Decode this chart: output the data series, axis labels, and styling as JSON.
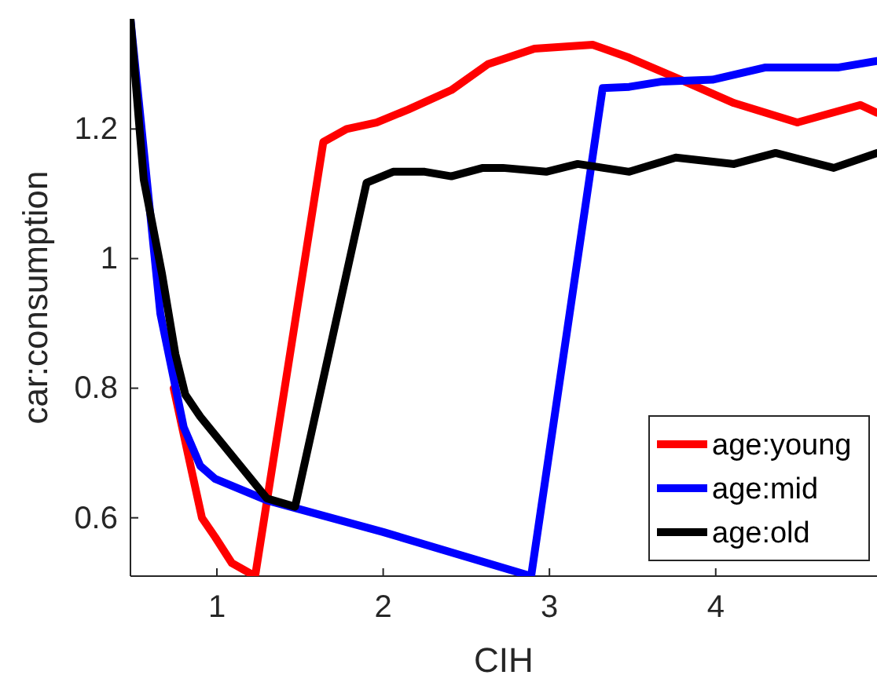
{
  "chart_data": {
    "type": "line",
    "xlabel": "CIH",
    "ylabel": "car:consumption",
    "xlim": [
      0.48,
      4.97
    ],
    "ylim": [
      0.51,
      1.37
    ],
    "xticks": [
      1,
      2,
      3,
      4
    ],
    "yticks": [
      0.6,
      0.8,
      1,
      1.2
    ],
    "grid": false,
    "legend": "bottom right",
    "line_style": "solid",
    "marker": "none",
    "series": [
      {
        "name": "age:young",
        "color": "#ff0000",
        "x": [
          0.74,
          0.85,
          0.91,
          0.99,
          1.09,
          1.23,
          1.64,
          1.78,
          1.96,
          2.15,
          2.41,
          2.63,
          2.91,
          3.26,
          3.48,
          3.79,
          4.11,
          4.49,
          4.87,
          4.97
        ],
        "values": [
          0.8,
          0.67,
          0.6,
          0.57,
          0.53,
          0.51,
          1.18,
          1.2,
          1.21,
          1.23,
          1.26,
          1.3,
          1.324,
          1.33,
          1.31,
          1.276,
          1.24,
          1.21,
          1.237,
          1.225
        ]
      },
      {
        "name": "age:mid",
        "color": "#0000ff",
        "x": [
          0.48,
          0.66,
          0.8,
          0.9,
          0.99,
          1.3,
          2.0,
          2.89,
          3.32,
          3.48,
          3.67,
          3.98,
          4.3,
          4.74,
          4.97
        ],
        "values": [
          1.37,
          0.915,
          0.74,
          0.68,
          0.66,
          0.627,
          0.578,
          0.51,
          1.263,
          1.265,
          1.273,
          1.276,
          1.295,
          1.295,
          1.305
        ]
      },
      {
        "name": "age:old",
        "color": "#000000",
        "x": [
          0.48,
          0.56,
          0.67,
          0.75,
          0.81,
          0.9,
          1.3,
          1.47,
          1.9,
          2.06,
          2.25,
          2.41,
          2.6,
          2.72,
          2.98,
          3.17,
          3.48,
          3.76,
          4.11,
          4.36,
          4.71,
          4.97
        ],
        "values": [
          1.37,
          1.122,
          0.976,
          0.853,
          0.79,
          0.756,
          0.63,
          0.617,
          1.117,
          1.134,
          1.134,
          1.127,
          1.14,
          1.14,
          1.134,
          1.146,
          1.134,
          1.156,
          1.146,
          1.163,
          1.14,
          1.163
        ]
      }
    ]
  }
}
